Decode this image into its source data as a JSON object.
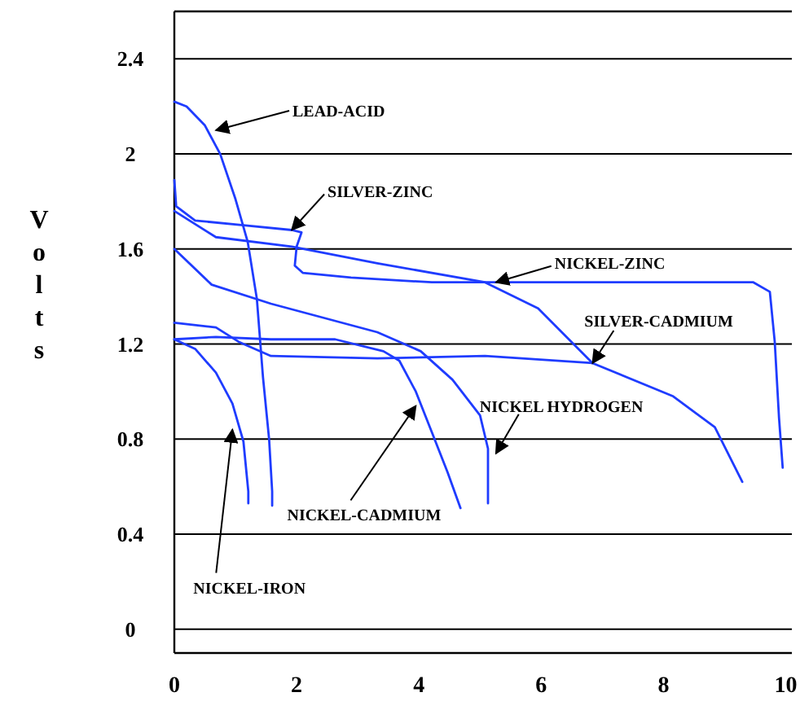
{
  "chart_data": {
    "type": "line",
    "ylabel": "Volts",
    "xlim": [
      0,
      10.1
    ],
    "ylim": [
      -0.1,
      2.6
    ],
    "xticks": [
      0,
      2,
      4,
      6,
      8,
      10
    ],
    "yticks": [
      0,
      0.4,
      0.8,
      1.2,
      1.6,
      2,
      2.4
    ],
    "grid": "y",
    "marker": "none",
    "line_style": "solid",
    "series": [
      {
        "color": "#1f3cff",
        "x": [
          0,
          0.2,
          0.5,
          0.75,
          1.0,
          1.2,
          1.35,
          1.45,
          1.55,
          1.6,
          1.6
        ],
        "values": [
          2.22,
          2.2,
          2.12,
          2.0,
          1.81,
          1.63,
          1.39,
          1.06,
          0.8,
          0.58,
          0.52
        ]
      },
      {
        "color": "#1f3cff",
        "x": [
          0,
          0.03,
          0.34,
          1.13,
          1.92,
          2.08,
          2.0,
          1.97,
          2.1,
          2.89,
          4.21,
          5.53,
          9.47,
          9.74,
          9.82,
          9.89,
          9.95
        ],
        "values": [
          1.89,
          1.78,
          1.72,
          1.7,
          1.68,
          1.67,
          1.61,
          1.53,
          1.5,
          1.48,
          1.46,
          1.46,
          1.46,
          1.42,
          1.21,
          0.89,
          0.68
        ]
      },
      {
        "color": "#1f3cff",
        "x": [
          0,
          0.68,
          1.92,
          3.32,
          5.08,
          5.95,
          6.84
        ],
        "values": [
          1.76,
          1.65,
          1.61,
          1.54,
          1.46,
          1.35,
          1.12
        ]
      },
      {
        "color": "#1f3cff",
        "x": [
          0,
          0.68,
          1.05,
          1.58,
          3.32,
          5.08,
          6.84,
          8.16,
          8.84,
          9.29
        ],
        "values": [
          1.29,
          1.27,
          1.21,
          1.15,
          1.14,
          1.15,
          1.12,
          0.98,
          0.85,
          0.62
        ]
      },
      {
        "color": "#1f3cff",
        "x": [
          0,
          0.61,
          1.58,
          3.32,
          4.03,
          4.55,
          5.0,
          5.13,
          5.13
        ],
        "values": [
          1.6,
          1.45,
          1.37,
          1.25,
          1.17,
          1.05,
          0.9,
          0.76,
          0.53
        ]
      },
      {
        "color": "#1f3cff",
        "x": [
          0,
          0.68,
          1.58,
          2.63,
          3.42,
          3.68,
          3.95,
          4.21,
          4.47,
          4.68
        ],
        "values": [
          1.22,
          1.23,
          1.22,
          1.22,
          1.17,
          1.13,
          1.0,
          0.83,
          0.66,
          0.51
        ]
      },
      {
        "color": "#1f3cff",
        "x": [
          0,
          0.34,
          0.68,
          0.95,
          1.13,
          1.21,
          1.21
        ],
        "values": [
          1.22,
          1.18,
          1.08,
          0.95,
          0.79,
          0.58,
          0.53
        ]
      }
    ],
    "annotations": [
      {
        "text": "LEAD-ACID",
        "x": 0.68,
        "y": 2.1
      },
      {
        "text": "SILVER-ZINC",
        "x": 1.92,
        "y": 1.68
      },
      {
        "text": "NICKEL-ZINC",
        "x": 5.26,
        "y": 1.46
      },
      {
        "text": "SILVER-CADMIUM",
        "x": 6.84,
        "y": 1.12
      },
      {
        "text": "NICKEL HYDROGEN",
        "x": 5.26,
        "y": 0.74
      },
      {
        "text": "NICKEL-CADMIUM",
        "x": 3.95,
        "y": 0.94
      },
      {
        "text": "NICKEL-IRON",
        "x": 0.95,
        "y": 0.84
      }
    ]
  }
}
